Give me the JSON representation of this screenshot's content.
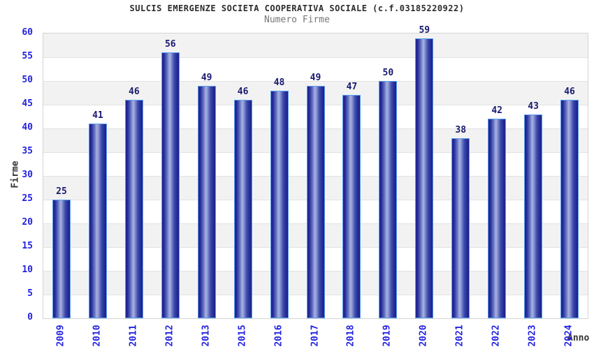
{
  "chart_data": {
    "type": "bar",
    "title": "SULCIS EMERGENZE SOCIETA COOPERATIVA SOCIALE (c.f.03185220922)",
    "subtitle": "Numero Firme",
    "xlabel": "Anno",
    "ylabel": "Firme",
    "categories": [
      "2009",
      "2010",
      "2011",
      "2012",
      "2013",
      "2015",
      "2016",
      "2017",
      "2018",
      "2019",
      "2020",
      "2021",
      "2022",
      "2023",
      "2024"
    ],
    "values": [
      25,
      41,
      46,
      56,
      49,
      46,
      48,
      49,
      47,
      50,
      59,
      38,
      42,
      43,
      46
    ],
    "ylim": [
      0,
      60
    ],
    "ytick_step": 5,
    "yticks": [
      0,
      5,
      10,
      15,
      20,
      25,
      30,
      35,
      40,
      45,
      50,
      55,
      60
    ],
    "grid": true,
    "legend": "none",
    "bands_alternating": true,
    "colors": {
      "bar_edge": "#1e2089",
      "bar_highlight": "#a9b2e0",
      "bar_border": "#59a0ee",
      "tick_label_blue": "#2222e0",
      "value_label_navy": "#191970",
      "title_text": "#2b2b2b",
      "subtitle_text": "#767676",
      "axis_title_text": "#333333",
      "band_gray": "#f2f2f2",
      "gridline": "#e2e2e2",
      "plot_border": "#d4d4d4",
      "background": "#ffffff"
    }
  }
}
